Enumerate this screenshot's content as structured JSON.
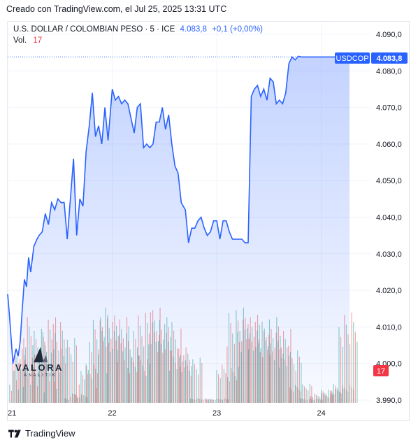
{
  "caption": "Creado con TradingView.com, el Jul 25, 2025 13:31 UTC",
  "legend": {
    "symbol": "U.S. DOLLAR / COLOMBIAN PESO · 5 · ICE",
    "price": "4.083,8",
    "change": "+0,1 (+0,00%)",
    "volume_label": "Vol.",
    "volume_value": "17"
  },
  "price_badge": {
    "ticker": "USDCOP",
    "price": "4.083,8"
  },
  "volume_badge": "17",
  "footer": {
    "brand": "TradingView"
  },
  "logo": {
    "name": "VALORA",
    "sub": "ANALITIK"
  },
  "colors": {
    "line": "#2962ff",
    "up_volume": "#26a69a",
    "down_volume": "#ef5350",
    "badge": "#2962ff"
  },
  "chart_data": {
    "type": "area",
    "y_tick_labels": [
      "4.090,0",
      "4.080,0",
      "4.070,0",
      "4.060,0",
      "4.050,0",
      "4.040,0",
      "4.030,0",
      "4.020,0",
      "4.010,0",
      "4.000,0",
      "3.990,0"
    ],
    "ylim": [
      3990,
      4090
    ],
    "x_tick_labels": [
      "21",
      "22",
      "23",
      "24"
    ],
    "x_tick_positions": [
      0.0,
      1.0,
      2.0,
      3.0
    ],
    "xlim": [
      0.0,
      3.35
    ],
    "last_price": 4083.8,
    "series": [
      {
        "x": [
          0.0,
          0.02,
          0.05,
          0.08,
          0.1,
          0.12,
          0.14,
          0.16,
          0.18,
          0.2,
          0.22,
          0.25,
          0.28,
          0.3,
          0.33,
          0.36,
          0.39,
          0.42,
          0.45,
          0.48,
          0.51,
          0.54,
          0.57,
          0.6,
          0.63,
          0.66,
          0.69,
          0.72,
          0.75,
          0.78,
          0.81,
          0.84,
          0.87,
          0.9,
          0.93,
          0.96,
          1.0,
          1.03,
          1.06,
          1.09,
          1.12,
          1.15,
          1.18,
          1.21,
          1.24,
          1.27,
          1.3,
          1.33,
          1.36,
          1.39,
          1.42,
          1.45,
          1.48,
          1.51,
          1.54,
          1.57,
          1.6,
          1.63,
          1.66,
          1.7,
          1.73,
          1.76,
          1.79,
          1.82,
          1.85,
          1.88,
          1.91,
          1.94,
          1.97,
          2.0,
          2.03,
          2.06,
          2.09,
          2.12,
          2.15,
          2.18,
          2.21,
          2.24,
          2.27,
          2.3,
          2.33,
          2.36,
          2.39,
          2.42,
          2.45,
          2.48,
          2.51,
          2.54,
          2.57,
          2.6,
          2.63,
          2.66,
          2.69,
          2.72,
          2.75,
          2.78,
          2.81,
          2.84,
          2.87,
          2.9,
          2.93,
          2.96,
          2.99,
          3.02,
          3.05,
          3.08,
          3.11,
          3.14,
          3.17,
          3.2,
          3.22,
          3.24,
          3.26,
          3.27
        ],
        "y": [
          4019,
          4012,
          4000,
          4004,
          4002,
          4006,
          4015,
          4023,
          4021,
          4029,
          4025,
          4032,
          4034,
          4035,
          4036,
          4041,
          4038,
          4044,
          4042,
          4045,
          4044,
          4044,
          4034,
          4045,
          4056,
          4035,
          4045,
          4043,
          4058,
          4065,
          4074,
          4062,
          4065,
          4060,
          4070,
          4061,
          4075,
          4072,
          4073,
          4071,
          4072,
          4071,
          4067,
          4063,
          4070,
          4071,
          4059,
          4060,
          4059,
          4060,
          4066,
          4066,
          4070,
          4064,
          4068,
          4060,
          4054,
          4052,
          4044,
          4042,
          4033,
          4037,
          4037,
          4039,
          4040,
          4037,
          4035,
          4036,
          4039,
          4039,
          4034,
          4039,
          4039,
          4036,
          4034,
          4034,
          4034,
          4034,
          4033,
          4033,
          4073,
          4075,
          4076,
          4073,
          4075,
          4072,
          4078,
          4077,
          4071,
          4072,
          4071,
          4074,
          4082,
          4083.8,
          4083,
          4084,
          4083.8,
          4083.8,
          4083.8,
          4083.8,
          4083.8,
          4083.8,
          4083.8,
          4083.8,
          4083.8,
          4083.8,
          4083.8,
          4083.8,
          4083.8,
          4083.8,
          4083.8,
          4083.8,
          4083.8,
          4083.8
        ]
      }
    ],
    "volume_note": "volume bars shown as histogram at bottom; scale not labeled",
    "volume_series": [
      {
        "x": 0.05,
        "v": 60
      },
      {
        "x": 0.15,
        "v": 90
      },
      {
        "x": 0.25,
        "v": 80
      },
      {
        "x": 0.35,
        "v": 95
      },
      {
        "x": 0.45,
        "v": 85
      },
      {
        "x": 0.55,
        "v": 70
      },
      {
        "x": 0.65,
        "v": 10
      },
      {
        "x": 0.75,
        "v": 40
      },
      {
        "x": 0.85,
        "v": 95
      },
      {
        "x": 0.95,
        "v": 100
      },
      {
        "x": 1.05,
        "v": 90
      },
      {
        "x": 1.15,
        "v": 80
      },
      {
        "x": 1.25,
        "v": 50
      },
      {
        "x": 1.35,
        "v": 100
      },
      {
        "x": 1.45,
        "v": 95
      },
      {
        "x": 1.55,
        "v": 85
      },
      {
        "x": 1.65,
        "v": 60
      },
      {
        "x": 1.75,
        "v": 50
      },
      {
        "x": 1.85,
        "v": 5
      },
      {
        "x": 2.0,
        "v": 5
      },
      {
        "x": 2.1,
        "v": 40
      },
      {
        "x": 2.2,
        "v": 100
      },
      {
        "x": 2.3,
        "v": 95
      },
      {
        "x": 2.4,
        "v": 85
      },
      {
        "x": 2.5,
        "v": 90
      },
      {
        "x": 2.6,
        "v": 80
      },
      {
        "x": 2.7,
        "v": 60
      },
      {
        "x": 2.8,
        "v": 20
      },
      {
        "x": 2.9,
        "v": 5
      },
      {
        "x": 3.0,
        "v": 10
      },
      {
        "x": 3.1,
        "v": 15
      },
      {
        "x": 3.2,
        "v": 20
      },
      {
        "x": 3.27,
        "v": 95
      }
    ]
  }
}
